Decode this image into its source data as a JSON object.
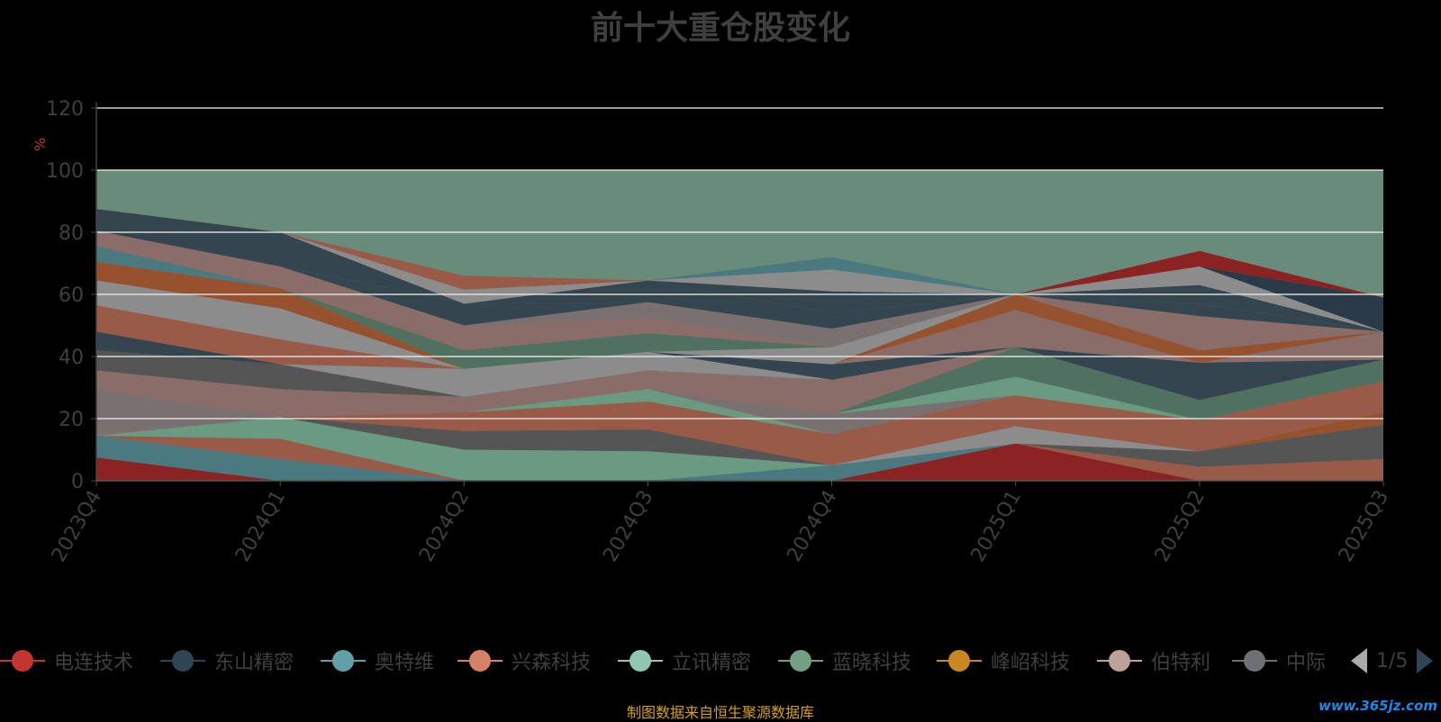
{
  "title": "前十大重仓股变化",
  "footer_note": "制图数据来自恒生聚源数据库",
  "watermark": "www.365jz.com",
  "legend": {
    "items": [
      {
        "name": "电连技术",
        "color": "#c23531"
      },
      {
        "name": "东山精密",
        "color": "#2f4554"
      },
      {
        "name": "奥特维",
        "color": "#61a0a8"
      },
      {
        "name": "兴森科技",
        "color": "#d48265"
      },
      {
        "name": "立讯精密",
        "color": "#91c7ae"
      },
      {
        "name": "蓝晓科技",
        "color": "#749f83"
      },
      {
        "name": "峰岹科技",
        "color": "#ca8622"
      },
      {
        "name": "伯特利",
        "color": "#bda29a"
      },
      {
        "name": "中际",
        "color": "#6e7074"
      }
    ],
    "page": "1/5"
  },
  "chart_data": {
    "type": "area",
    "stacked": true,
    "categories": [
      "2023Q4",
      "2024Q1",
      "2024Q2",
      "2024Q3",
      "2024Q4",
      "2025Q1",
      "2025Q2",
      "2025Q3"
    ],
    "ylabel": "%",
    "ylim": [
      0,
      120
    ],
    "yticks": [
      0,
      20,
      40,
      60,
      80,
      100,
      120
    ],
    "grid": true,
    "legend_position": "bottom",
    "background_band": {
      "from": 0,
      "to": 100,
      "color": "#698b7a"
    },
    "series": [
      {
        "color": "#8b2323",
        "values": [
          7.5,
          0,
          0,
          0,
          0,
          12,
          0,
          0
        ]
      },
      {
        "color": "#4a7a80",
        "values": [
          7,
          7,
          0,
          0,
          5,
          0,
          0,
          0
        ]
      },
      {
        "color": "#9a5a48",
        "values": [
          0,
          6.5,
          0,
          0,
          0,
          0,
          4.5,
          7
        ]
      },
      {
        "color": "#6a9a82",
        "values": [
          0,
          7,
          10,
          9.5,
          0,
          0,
          0,
          0
        ]
      },
      {
        "color": "#555555",
        "values": [
          0,
          0,
          6,
          7,
          0,
          0,
          5,
          11
        ]
      },
      {
        "color": "#8c8c8c",
        "values": [
          0,
          0,
          0,
          0,
          0,
          5.5,
          0,
          0
        ]
      },
      {
        "color": "#96522f",
        "values": [
          0,
          0,
          0,
          0,
          0,
          0,
          0,
          4
        ]
      },
      {
        "color": "#9a5a48",
        "values": [
          0,
          0,
          6,
          9,
          10,
          0,
          0,
          10
        ]
      },
      {
        "color": "#6a9a82",
        "values": [
          0,
          0,
          0,
          4,
          0,
          0,
          0,
          0
        ]
      },
      {
        "color": "#9a5a48",
        "values": [
          0,
          0,
          0,
          0,
          0,
          10,
          10,
          0
        ]
      },
      {
        "color": "#7a7070",
        "values": [
          15,
          0,
          0,
          0,
          6.5,
          0,
          0,
          0
        ]
      },
      {
        "color": "#6a9a82",
        "values": [
          0,
          0,
          0,
          0,
          0,
          6,
          0,
          0
        ]
      },
      {
        "color": "#507060",
        "values": [
          0,
          0,
          0,
          0,
          0,
          9.5,
          6.5,
          7
        ]
      },
      {
        "color": "#8a6c68",
        "values": [
          6,
          9,
          5,
          6,
          11,
          0,
          0,
          0
        ]
      },
      {
        "color": "#555555",
        "values": [
          6.5,
          8,
          0,
          0,
          0,
          0,
          0,
          0
        ]
      },
      {
        "color": "#8c8c8c",
        "values": [
          0,
          0,
          9,
          6,
          0,
          0,
          0,
          0
        ]
      },
      {
        "color": "#354550",
        "values": [
          6,
          0,
          0,
          0,
          5,
          0,
          12,
          0
        ]
      },
      {
        "color": "#8a6c68",
        "values": [
          0,
          0,
          0,
          0,
          0,
          12,
          0,
          9
        ]
      },
      {
        "color": "#96522f",
        "values": [
          0,
          0,
          0,
          0,
          0,
          5,
          0,
          0
        ]
      },
      {
        "color": "#9a5a48",
        "values": [
          8.5,
          8,
          0,
          0,
          0,
          0,
          0,
          0
        ]
      },
      {
        "color": "#8c8c8c",
        "values": [
          0,
          0,
          0,
          0,
          5.5,
          0,
          0,
          0
        ]
      },
      {
        "color": "#96522f",
        "values": [
          0,
          0,
          0,
          0,
          0,
          0,
          4,
          0
        ]
      },
      {
        "color": "#8c8c8c",
        "values": [
          0,
          0,
          0,
          0,
          0,
          0,
          0,
          0
        ]
      },
      {
        "color": "#4a7a80",
        "values": [
          0,
          0,
          0,
          0,
          0,
          0,
          0,
          0
        ]
      },
      {
        "color": "#8c8c8c",
        "values": [
          8,
          10,
          0,
          0,
          0,
          0,
          0,
          0
        ]
      },
      {
        "color": "#96522f",
        "values": [
          6,
          6.5,
          0,
          0,
          0,
          0,
          0,
          0
        ]
      },
      {
        "color": "#8c8c8c",
        "values": [
          0,
          0,
          0,
          0,
          0,
          0,
          0,
          0
        ]
      },
      {
        "color": "#8b2323",
        "values": [
          0,
          0,
          0,
          0,
          0,
          0,
          0,
          0
        ]
      },
      {
        "color": "#4a7a80",
        "values": [
          5,
          0,
          0,
          0,
          0,
          0,
          0,
          0
        ]
      },
      {
        "color": "#8c8c8c",
        "values": [
          0,
          0,
          0,
          0,
          0,
          0,
          0,
          0
        ]
      },
      {
        "color": "#507060",
        "values": [
          0,
          0,
          6,
          6,
          0,
          0,
          0,
          0
        ]
      },
      {
        "color": "#354550",
        "values": [
          0,
          0,
          0,
          0,
          0,
          0,
          0,
          0
        ]
      },
      {
        "color": "#8a6c68",
        "values": [
          0,
          0,
          8,
          5,
          0,
          0,
          0,
          0
        ]
      },
      {
        "color": "#7a7070",
        "values": [
          0,
          0,
          0,
          5,
          6,
          0,
          0,
          0
        ]
      },
      {
        "color": "#8a6c68",
        "values": [
          5,
          7,
          0,
          0,
          0,
          0,
          11,
          0
        ]
      },
      {
        "color": "#354550",
        "values": [
          0,
          0,
          7,
          0,
          0,
          0,
          4,
          0
        ]
      },
      {
        "color": "#8c8c8c",
        "values": [
          0,
          0,
          0,
          0,
          0,
          0,
          0,
          0
        ]
      },
      {
        "color": "#8b2323",
        "values": [
          0,
          0,
          0,
          0,
          0,
          0,
          0,
          0
        ]
      },
      {
        "color": "#354550",
        "values": [
          7,
          11,
          0,
          7,
          5,
          0,
          6,
          0
        ]
      },
      {
        "color": "#8c8c8c",
        "values": [
          0,
          0,
          0,
          0,
          0,
          0,
          0,
          0
        ]
      },
      {
        "color": "#354550",
        "values": [
          0,
          0,
          0,
          0,
          7,
          0,
          0,
          0
        ]
      },
      {
        "color": "#8c8c8c",
        "values": [
          0,
          0,
          4.5,
          0,
          7,
          0,
          6,
          0
        ]
      },
      {
        "color": "#4a7a80",
        "values": [
          0,
          0,
          0,
          0,
          4,
          0,
          0,
          0
        ]
      },
      {
        "color": "#2a3a48",
        "values": [
          0,
          0,
          0,
          0,
          0,
          0,
          0,
          11
        ]
      },
      {
        "color": "#9a5a48",
        "values": [
          0,
          0,
          4.5,
          0,
          0,
          0,
          0,
          0
        ]
      },
      {
        "color": "#8b2323",
        "values": [
          0,
          0,
          0,
          0,
          0,
          0,
          5,
          0
        ]
      }
    ]
  }
}
